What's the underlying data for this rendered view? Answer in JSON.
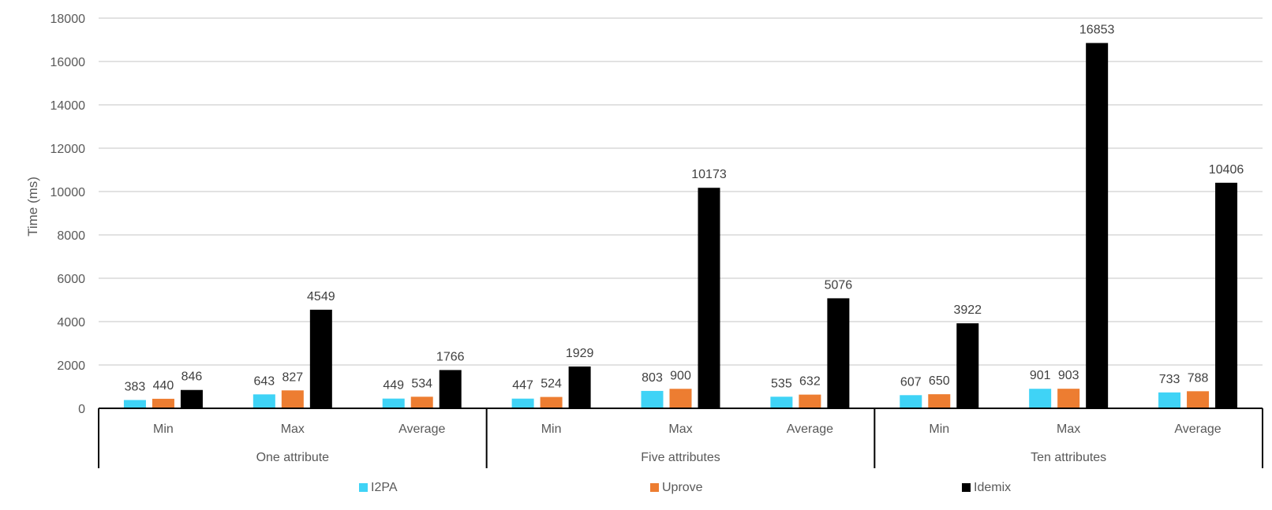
{
  "chart_data": {
    "type": "bar",
    "title": "",
    "xlabel": "",
    "ylabel": "Time (ms)",
    "ylim": [
      0,
      18000
    ],
    "yticks": [
      0,
      2000,
      4000,
      6000,
      8000,
      10000,
      12000,
      14000,
      16000,
      18000
    ],
    "grid": true,
    "legend_position": "bottom",
    "groups": [
      {
        "label": "One attribute",
        "categories": [
          "Min",
          "Max",
          "Average"
        ]
      },
      {
        "label": "Five attributes",
        "categories": [
          "Min",
          "Max",
          "Average"
        ]
      },
      {
        "label": "Ten attributes",
        "categories": [
          "Min",
          "Max",
          "Average"
        ]
      }
    ],
    "series": [
      {
        "name": "I2PA",
        "color": "#3fd3f6",
        "values": [
          383,
          643,
          449,
          447,
          803,
          535,
          607,
          901,
          733
        ]
      },
      {
        "name": "Uprove",
        "color": "#ed7d31",
        "values": [
          440,
          827,
          534,
          524,
          900,
          632,
          650,
          903,
          788
        ]
      },
      {
        "name": "Idemix",
        "color": "#000000",
        "values": [
          846,
          4549,
          1766,
          1929,
          10173,
          5076,
          3922,
          16853,
          10406
        ]
      }
    ]
  }
}
